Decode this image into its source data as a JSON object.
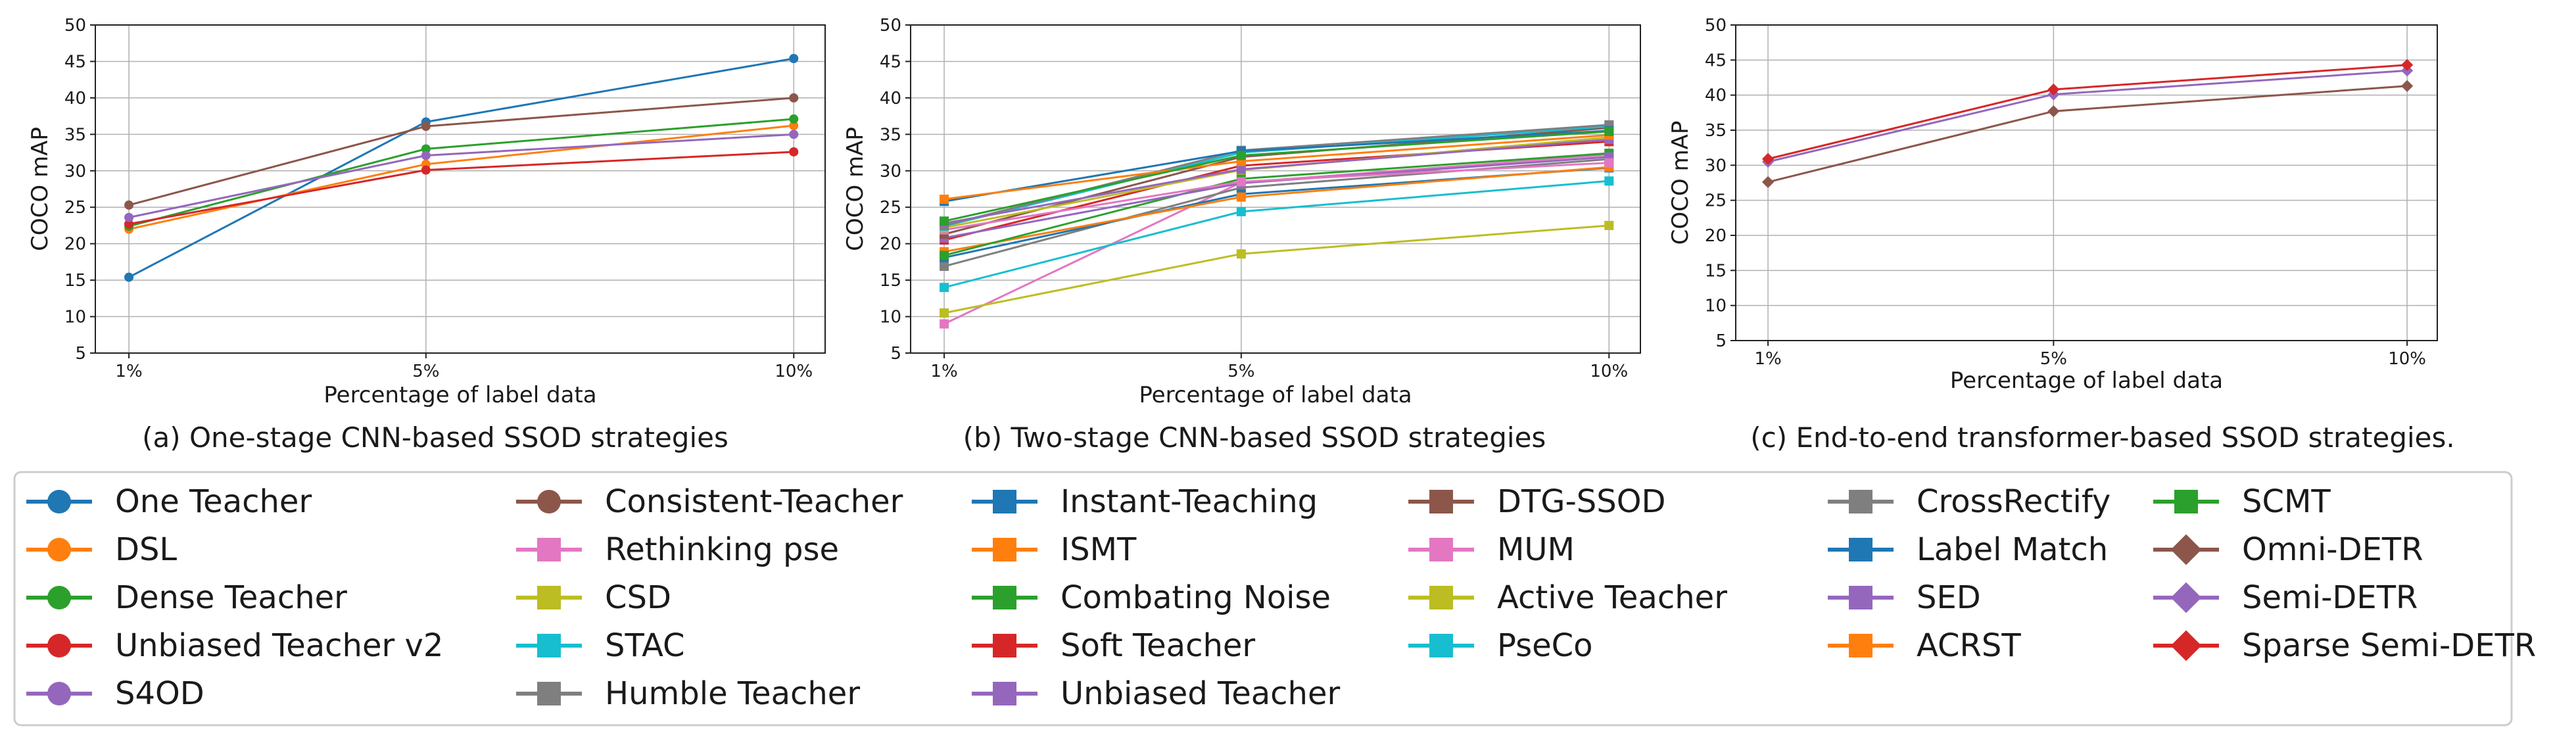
{
  "colors": {
    "tab_blue": "#1f77b4",
    "tab_orange": "#ff7f0e",
    "tab_green": "#2ca02c",
    "tab_red": "#d62728",
    "tab_purple": "#9467bd",
    "tab_brown": "#8c564b",
    "tab_pink": "#e377c2",
    "tab_olive": "#bcbd22",
    "tab_cyan": "#17becf",
    "tab_gray": "#7f7f7f"
  },
  "chart_data": [
    {
      "type": "line",
      "caption": "(a) One-stage CNN-based SSOD strategies",
      "xlabel": "Percentage of label data",
      "ylabel": "COCO mAP",
      "categories": [
        "1%",
        "5%",
        "10%"
      ],
      "ylim": [
        5,
        50
      ],
      "yticks": [
        5,
        10,
        15,
        20,
        25,
        30,
        35,
        40,
        45,
        50
      ],
      "grid": true,
      "series": [
        {
          "name": "One Teacher",
          "marker": "circle",
          "color": "#1f77b4",
          "values": [
            15.4,
            36.7,
            45.4
          ]
        },
        {
          "name": "DSL",
          "marker": "circle",
          "color": "#ff7f0e",
          "values": [
            22.0,
            30.9,
            36.2
          ]
        },
        {
          "name": "Dense Teacher",
          "marker": "circle",
          "color": "#2ca02c",
          "values": [
            22.4,
            33.0,
            37.1
          ]
        },
        {
          "name": "Unbiased Teacher v2",
          "marker": "circle",
          "color": "#d62728",
          "values": [
            22.7,
            30.1,
            32.6
          ]
        },
        {
          "name": "S4OD",
          "marker": "circle",
          "color": "#9467bd",
          "values": [
            23.6,
            32.1,
            35.0
          ]
        },
        {
          "name": "Consistent-Teacher",
          "marker": "circle",
          "color": "#8c564b",
          "values": [
            25.3,
            36.1,
            40.0
          ]
        }
      ]
    },
    {
      "type": "line",
      "caption": "(b) Two-stage CNN-based SSOD strategies",
      "xlabel": "Percentage of label data",
      "ylabel": "COCO mAP",
      "categories": [
        "1%",
        "5%",
        "10%"
      ],
      "ylim": [
        5,
        50
      ],
      "yticks": [
        5,
        10,
        15,
        20,
        25,
        30,
        35,
        40,
        45,
        50
      ],
      "grid": true,
      "series": [
        {
          "name": "Rethinking pse",
          "marker": "square",
          "color": "#e377c2",
          "values": [
            9.0,
            28.4,
            32.2
          ]
        },
        {
          "name": "CSD",
          "marker": "square",
          "color": "#bcbd22",
          "values": [
            10.5,
            18.6,
            22.5
          ]
        },
        {
          "name": "STAC",
          "marker": "square",
          "color": "#17becf",
          "values": [
            14.0,
            24.4,
            28.6
          ]
        },
        {
          "name": "Humble Teacher",
          "marker": "square",
          "color": "#7f7f7f",
          "values": [
            16.9,
            27.7,
            31.6
          ]
        },
        {
          "name": "Instant-Teaching",
          "marker": "square",
          "color": "#1f77b4",
          "values": [
            18.1,
            26.8,
            30.4
          ]
        },
        {
          "name": "ISMT",
          "marker": "square",
          "color": "#ff7f0e",
          "values": [
            18.9,
            26.4,
            30.5
          ]
        },
        {
          "name": "Combating Noise",
          "marker": "square",
          "color": "#2ca02c",
          "values": [
            18.4,
            28.9,
            32.4
          ]
        },
        {
          "name": "Soft Teacher",
          "marker": "square",
          "color": "#d62728",
          "values": [
            20.5,
            30.7,
            34.0
          ]
        },
        {
          "name": "Unbiased Teacher",
          "marker": "square",
          "color": "#9467bd",
          "values": [
            20.8,
            28.3,
            31.9
          ]
        },
        {
          "name": "DTG-SSOD",
          "marker": "square",
          "color": "#8c564b",
          "values": [
            21.3,
            31.9,
            35.9
          ]
        },
        {
          "name": "MUM",
          "marker": "square",
          "color": "#e377c2",
          "values": [
            21.9,
            28.5,
            31.1
          ]
        },
        {
          "name": "Active Teacher",
          "marker": "square",
          "color": "#bcbd22",
          "values": [
            22.2,
            30.1,
            34.6
          ]
        },
        {
          "name": "PseCo",
          "marker": "square",
          "color": "#17becf",
          "values": [
            22.4,
            32.5,
            36.1
          ]
        },
        {
          "name": "CrossRectify",
          "marker": "square",
          "color": "#7f7f7f",
          "values": [
            22.5,
            32.8,
            36.3
          ]
        },
        {
          "name": "Label Match",
          "marker": "square",
          "color": "#1f77b4",
          "values": [
            25.8,
            32.7,
            35.5
          ]
        },
        {
          "name": "SED",
          "marker": "square",
          "color": "#9467bd",
          "values": [
            22.8,
            30.2,
            34.3
          ]
        },
        {
          "name": "ACRST",
          "marker": "square",
          "color": "#ff7f0e",
          "values": [
            26.1,
            31.3,
            34.9
          ]
        },
        {
          "name": "SCMT",
          "marker": "square",
          "color": "#2ca02c",
          "values": [
            23.1,
            32.1,
            35.4
          ]
        }
      ]
    },
    {
      "type": "line",
      "caption": "(c) End-to-end transformer-based SSOD strategies.",
      "xlabel": "Percentage of label data",
      "ylabel": "COCO mAP",
      "categories": [
        "1%",
        "5%",
        "10%"
      ],
      "ylim": [
        5,
        50
      ],
      "yticks": [
        5,
        10,
        15,
        20,
        25,
        30,
        35,
        40,
        45,
        50
      ],
      "grid": true,
      "series": [
        {
          "name": "Omni-DETR",
          "marker": "diamond",
          "color": "#8c564b",
          "values": [
            27.6,
            37.7,
            41.3
          ]
        },
        {
          "name": "Semi-DETR",
          "marker": "diamond",
          "color": "#9467bd",
          "values": [
            30.5,
            40.1,
            43.5
          ]
        },
        {
          "name": "Sparse Semi-DETR",
          "marker": "diamond",
          "color": "#d62728",
          "values": [
            30.9,
            40.8,
            44.3
          ]
        }
      ]
    }
  ],
  "legend": {
    "columns": [
      [
        "One Teacher",
        "DSL",
        "Dense Teacher",
        "Unbiased Teacher v2",
        "S4OD"
      ],
      [
        "Consistent-Teacher",
        "Rethinking pse",
        "CSD",
        "STAC",
        "Humble Teacher"
      ],
      [
        "Instant-Teaching",
        "ISMT",
        "Combating Noise",
        "Soft Teacher",
        "Unbiased Teacher"
      ],
      [
        "DTG-SSOD",
        "MUM",
        "Active Teacher",
        "PseCo"
      ],
      [
        "CrossRectify",
        "Label Match",
        "SED",
        "ACRST"
      ],
      [
        "SCMT",
        "Omni-DETR",
        "Semi-DETR",
        "Sparse Semi-DETR"
      ]
    ]
  }
}
